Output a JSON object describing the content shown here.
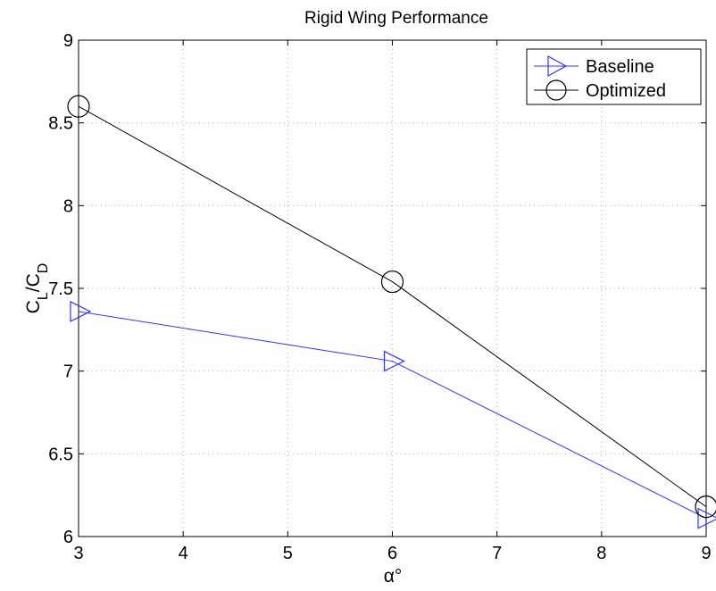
{
  "chart_data": {
    "type": "line",
    "title": "Rigid Wing Performance",
    "xlabel": "α°",
    "ylabel": {
      "main": "C",
      "sub": "L",
      "mid": "/C",
      "sub2": "D"
    },
    "xlim": [
      3,
      9
    ],
    "ylim": [
      6,
      9
    ],
    "xticks": [
      "3",
      "4",
      "5",
      "6",
      "7",
      "8",
      "9"
    ],
    "yticks": [
      "6",
      "6.5",
      "7",
      "7.5",
      "8",
      "8.5",
      "9"
    ],
    "grid": true,
    "legend_position": "top-right",
    "series": [
      {
        "name": "Baseline",
        "color": "#3333ff",
        "marker": "triangle-right",
        "x": [
          3,
          6,
          9
        ],
        "y": [
          7.36,
          7.06,
          6.11
        ]
      },
      {
        "name": "Optimized",
        "color": "#000000",
        "marker": "circle",
        "x": [
          3,
          6,
          9
        ],
        "y": [
          8.6,
          7.54,
          6.18
        ]
      }
    ]
  }
}
